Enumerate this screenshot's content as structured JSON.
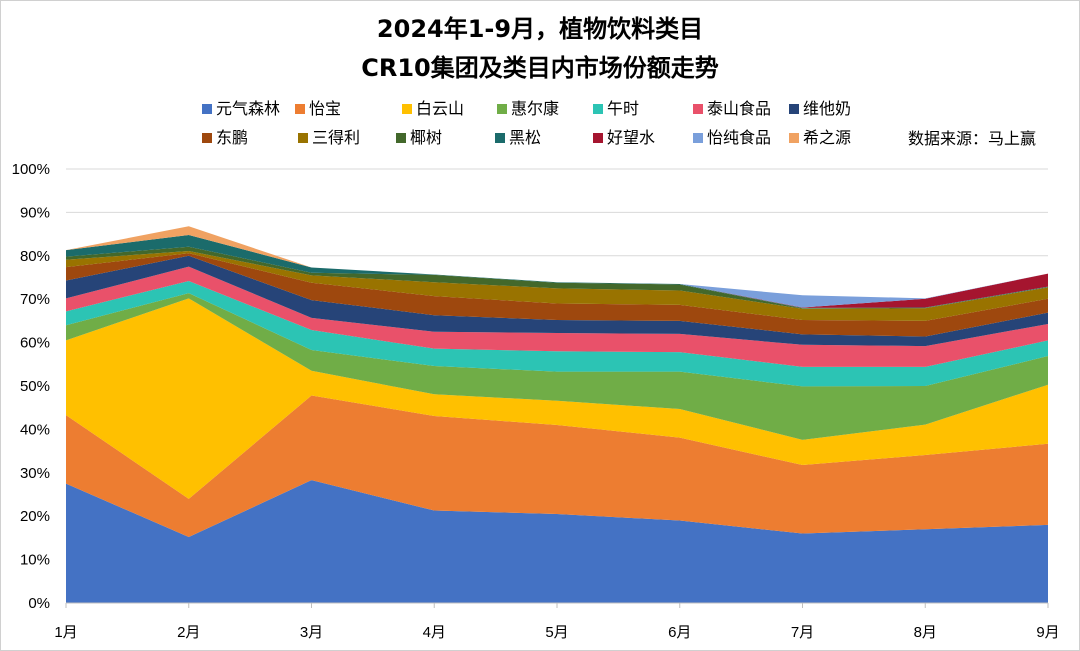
{
  "chart_data": {
    "type": "area",
    "stacked": true,
    "title": [
      "2024年1-9月，植物饮料类目",
      "CR10集团及类目内市场份额走势"
    ],
    "source_note": "数据来源：马上赢",
    "categories": [
      "1月",
      "2月",
      "3月",
      "4月",
      "5月",
      "6月",
      "7月",
      "8月",
      "9月"
    ],
    "ylim": [
      0,
      100
    ],
    "yticks": [
      "0%",
      "10%",
      "20%",
      "30%",
      "40%",
      "50%",
      "60%",
      "70%",
      "80%",
      "90%",
      "100%"
    ],
    "grid": true,
    "legend_position": "top",
    "series": [
      {
        "name": "元气森林",
        "color": "#4472C4",
        "values": [
          27.5,
          15.2,
          28.3,
          21.3,
          20.5,
          19.0,
          16.0,
          17.0,
          18.0
        ]
      },
      {
        "name": "怡宝",
        "color": "#ED7D31",
        "values": [
          15.8,
          8.8,
          19.5,
          21.8,
          20.5,
          19.1,
          15.8,
          17.1,
          18.7
        ]
      },
      {
        "name": "白云山",
        "color": "#FFC000",
        "values": [
          17.2,
          46.2,
          5.7,
          5.0,
          5.6,
          6.6,
          5.8,
          7.0,
          13.6
        ]
      },
      {
        "name": "惠尔康",
        "color": "#70AD47",
        "values": [
          3.5,
          1.2,
          4.8,
          6.5,
          6.7,
          8.6,
          12.3,
          8.9,
          6.6
        ]
      },
      {
        "name": "午时",
        "color": "#2CC4B4",
        "values": [
          3.2,
          2.8,
          4.6,
          4.0,
          4.7,
          4.5,
          4.5,
          4.4,
          3.6
        ]
      },
      {
        "name": "泰山食品",
        "color": "#E9516A",
        "values": [
          3.0,
          3.3,
          2.8,
          3.9,
          4.2,
          4.2,
          5.1,
          4.8,
          3.8
        ]
      },
      {
        "name": "维他奶",
        "color": "#264478",
        "values": [
          4.1,
          2.5,
          4.1,
          3.8,
          3.0,
          3.0,
          2.4,
          2.2,
          2.6
        ]
      },
      {
        "name": "东鹏",
        "color": "#9E480E",
        "values": [
          3.1,
          0.6,
          4.0,
          4.4,
          3.8,
          3.7,
          3.3,
          3.6,
          3.2
        ]
      },
      {
        "name": "三得利",
        "color": "#997300",
        "values": [
          1.7,
          0.5,
          1.7,
          3.2,
          3.5,
          3.3,
          2.6,
          2.9,
          2.6
        ]
      },
      {
        "name": "椰树",
        "color": "#43682B",
        "values": [
          0.7,
          1.0,
          0.6,
          1.7,
          1.3,
          1.4,
          0.1,
          0.1,
          0.1
        ]
      },
      {
        "name": "黑松",
        "color": "#1B6B6B",
        "values": [
          1.5,
          2.7,
          1.2,
          0.1,
          0.1,
          0.1,
          0.1,
          0.1,
          0.1
        ]
      },
      {
        "name": "好望水",
        "color": "#A5152F",
        "values": [
          0.0,
          0.0,
          0.0,
          0.0,
          0.0,
          0.0,
          0.1,
          2.0,
          3.0
        ]
      },
      {
        "name": "怡纯食品",
        "color": "#7A9FDB",
        "values": [
          0.0,
          0.0,
          0.0,
          0.0,
          0.0,
          0.0,
          2.8,
          0.1,
          0.0
        ]
      },
      {
        "name": "希之源",
        "color": "#F0A262",
        "values": [
          0.0,
          2.0,
          0.0,
          0.0,
          0.0,
          0.0,
          0.0,
          0.0,
          0.0
        ]
      }
    ]
  }
}
